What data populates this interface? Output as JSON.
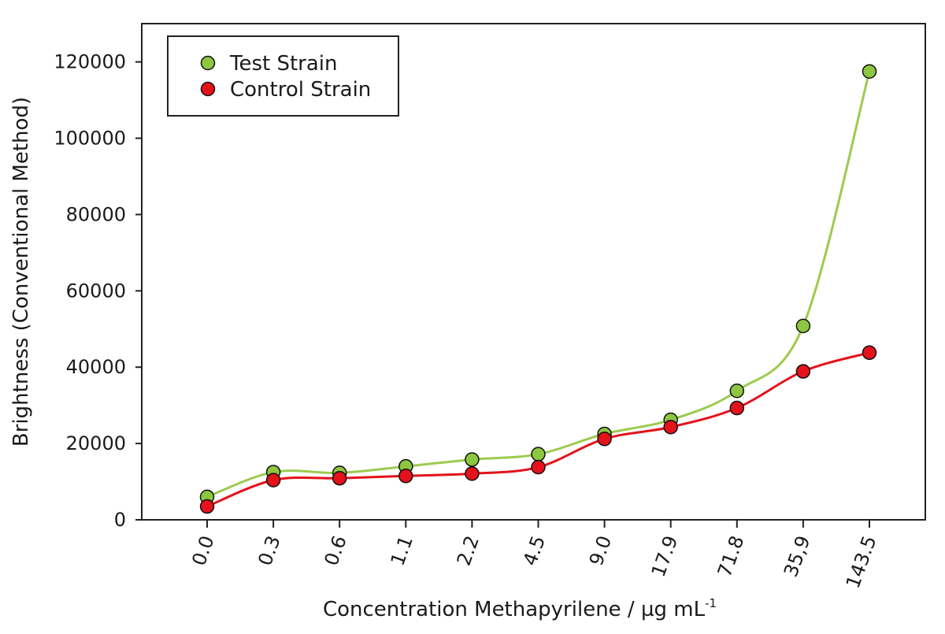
{
  "chart_data": {
    "type": "line",
    "xlabel": "Concentration Methapyrilene / µg mL",
    "xlabel_superscript": "-1",
    "ylabel": "Brightness (Conventional Method)",
    "categories": [
      "0.0",
      "0.3",
      "0.6",
      "1.1",
      "2.2",
      "4.5",
      "9.0",
      "17.9",
      "71.8",
      "35,9",
      "143.5"
    ],
    "y_ticks": [
      "0",
      "20000",
      "40000",
      "60000",
      "80000",
      "100000",
      "120000"
    ],
    "ylim": [
      0,
      130000
    ],
    "legend_position": "top-left",
    "grid": false,
    "series": [
      {
        "name": "Test Strain",
        "color": "#8dc63f",
        "line_color": "#9ccb4f",
        "values": [
          6000,
          12500,
          12300,
          14000,
          15800,
          17200,
          22500,
          26200,
          33800,
          50800,
          117500
        ]
      },
      {
        "name": "Control Strain",
        "color": "#e3121b",
        "line_color": "#e3121b",
        "values": [
          3500,
          10400,
          10900,
          11500,
          12100,
          13800,
          21200,
          24300,
          29300,
          38900,
          43800
        ]
      }
    ]
  }
}
